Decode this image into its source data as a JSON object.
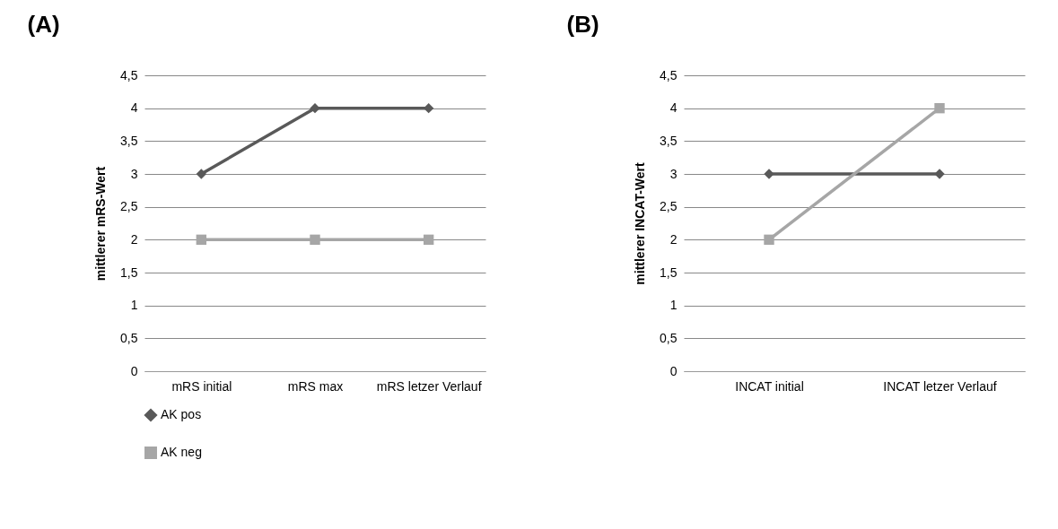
{
  "chart_data": [
    {
      "type": "line",
      "title": "(A)",
      "ylabel": "mittlerer mRS-Wert",
      "categories": [
        "mRS initial",
        "mRS max",
        "mRS letzer Verlauf"
      ],
      "series": [
        {
          "name": "AK pos",
          "color": "#595959",
          "marker": "diamond",
          "values": [
            3,
            4,
            4
          ]
        },
        {
          "name": "AK neg",
          "color": "#a6a6a6",
          "marker": "square",
          "values": [
            2,
            2,
            2
          ]
        }
      ],
      "ylim": [
        0,
        4.5
      ],
      "yticks": [
        0,
        {
          "value": 0.5,
          "label": "0,5"
        },
        1,
        {
          "value": 1.5,
          "label": "1,5"
        },
        2,
        {
          "value": 2.5,
          "label": "2,5"
        },
        3,
        {
          "value": 3.5,
          "label": "3,5"
        },
        4,
        {
          "value": 4.5,
          "label": "4,5"
        }
      ],
      "grid": "y",
      "legend": "bottom left",
      "line_style": "solid"
    },
    {
      "type": "line",
      "title": "(B)",
      "ylabel": "mittlerer INCAT-Wert",
      "categories": [
        "INCAT initial",
        "INCAT letzer Verlauf"
      ],
      "series": [
        {
          "color": "#595959",
          "marker": "diamond",
          "values": [
            3,
            3
          ]
        },
        {
          "color": "#a6a6a6",
          "marker": "square",
          "values": [
            2,
            4
          ]
        }
      ],
      "ylim": [
        0,
        4.5
      ],
      "yticks": [
        0,
        {
          "value": 0.5,
          "label": "0,5"
        },
        1,
        {
          "value": 1.5,
          "label": "1,5"
        },
        2,
        {
          "value": 2.5,
          "label": "2,5"
        },
        3,
        {
          "value": 3.5,
          "label": "3,5"
        },
        4,
        {
          "value": 4.5,
          "label": "4,5"
        }
      ],
      "grid": "y",
      "legend": false,
      "line_style": "solid"
    }
  ]
}
